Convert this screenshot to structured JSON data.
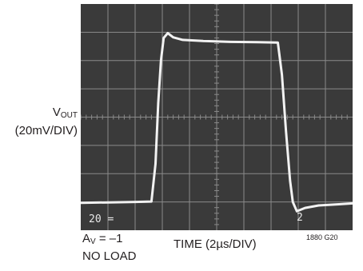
{
  "labels": {
    "ylabel_main": "V",
    "ylabel_sub": "OUT",
    "ylabel_scale": "(20mV/DIV)",
    "xlabel": "TIME (2µs/DIV)",
    "cond_gain_main": "A",
    "cond_gain_sub": "V",
    "cond_gain_value": " = –1",
    "cond_load": "NO LOAD",
    "fig_id": "1880 G20",
    "ch_scale_readout": "20 =",
    "time_scale_readout": "2"
  },
  "colors": {
    "screen": "#3a3a3a",
    "grid": "#8a8a8a",
    "trace": "#f2f2f2",
    "readout": "#e8e8e8",
    "text": "#231f20"
  },
  "chart_data": {
    "type": "line",
    "title": "",
    "xlabel": "TIME (2µs/DIV)",
    "ylabel": "VOUT (20mV/DIV)",
    "x_unit": "µs",
    "y_unit": "mV",
    "xlim": [
      0,
      20
    ],
    "ylim": [
      -80,
      80
    ],
    "grid": true,
    "divisions": {
      "x": 10,
      "y": 8
    },
    "series": [
      {
        "values": [
          [
            0.0,
            -60.6
          ],
          [
            2.0,
            -60.3
          ],
          [
            4.0,
            -60.0
          ],
          [
            5.2,
            -59.7
          ],
          [
            5.5,
            -33.0
          ],
          [
            5.7,
            10.0
          ],
          [
            5.9,
            40.0
          ],
          [
            6.1,
            56.0
          ],
          [
            6.4,
            59.4
          ],
          [
            6.8,
            56.4
          ],
          [
            7.5,
            54.6
          ],
          [
            9.0,
            53.8
          ],
          [
            11.0,
            53.2
          ],
          [
            13.0,
            53.0
          ],
          [
            14.5,
            52.7
          ],
          [
            14.8,
            30.0
          ],
          [
            15.1,
            -10.0
          ],
          [
            15.4,
            -45.0
          ],
          [
            15.6,
            -60.0
          ],
          [
            15.9,
            -66.6
          ],
          [
            16.5,
            -64.2
          ],
          [
            17.5,
            -62.5
          ],
          [
            19.0,
            -61.6
          ],
          [
            20.0,
            -61.0
          ]
        ]
      }
    ]
  }
}
